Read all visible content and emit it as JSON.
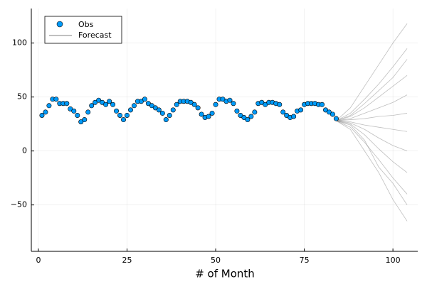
{
  "chart_data": {
    "type": "scatter-fan",
    "xlabel": "# of Month",
    "xlim": [
      -2,
      107
    ],
    "ylim": [
      -93,
      132
    ],
    "xticks": [
      0,
      25,
      50,
      75,
      100
    ],
    "yticks": [
      {
        "value": -50,
        "label": "−50"
      },
      0,
      50,
      100
    ],
    "grid": true,
    "legend": "top-left",
    "series": [
      {
        "name": "Obs",
        "color": "#009af9",
        "x": [
          1,
          2,
          3,
          4,
          5,
          6,
          7,
          8,
          9,
          10,
          11,
          12,
          13,
          14,
          15,
          16,
          17,
          18,
          19,
          20,
          21,
          22,
          23,
          24,
          25,
          26,
          27,
          28,
          29,
          30,
          31,
          32,
          33,
          34,
          35,
          36,
          37,
          38,
          39,
          40,
          41,
          42,
          43,
          44,
          45,
          46,
          47,
          48,
          49,
          50,
          51,
          52,
          53,
          54,
          55,
          56,
          57,
          58,
          59,
          60,
          61,
          62,
          63,
          64,
          65,
          66,
          67,
          68,
          69,
          70,
          71,
          72,
          73,
          74,
          75,
          76,
          77,
          78,
          79,
          80,
          81,
          82,
          83,
          84
        ],
        "values": [
          33,
          36,
          42,
          48,
          48,
          44,
          44,
          44,
          39,
          37,
          33,
          27,
          29,
          36,
          42,
          45,
          47,
          45,
          43,
          46,
          43,
          37,
          33,
          29,
          33,
          38,
          42,
          46,
          46,
          48,
          44,
          42,
          40,
          38,
          35,
          29,
          33,
          38,
          43,
          46,
          46,
          46,
          45,
          43,
          40,
          34,
          31,
          32,
          35,
          43,
          48,
          48,
          46,
          47,
          44,
          37,
          33,
          31,
          29,
          32,
          36,
          44,
          45,
          43,
          45,
          45,
          44,
          43,
          36,
          33,
          31,
          32,
          37,
          38,
          43,
          44,
          44,
          44,
          43,
          43,
          38,
          36,
          34,
          30
        ]
      },
      {
        "name": "Forecast",
        "color": "#808080",
        "x": [
          84,
          88,
          92,
          96,
          100,
          104
        ],
        "paths": [
          [
            28,
            40,
            60,
            80,
            100,
            118
          ],
          [
            28,
            35,
            48,
            62,
            78,
            95
          ],
          [
            28,
            33,
            44,
            56,
            68,
            85
          ],
          [
            28,
            32,
            40,
            50,
            60,
            70
          ],
          [
            28,
            30,
            35,
            40,
            45,
            52
          ],
          [
            28,
            29,
            30,
            32,
            33,
            35
          ],
          [
            28,
            27,
            24,
            22,
            20,
            18
          ],
          [
            28,
            26,
            20,
            12,
            5,
            0
          ],
          [
            28,
            25,
            15,
            2,
            -10,
            -20
          ],
          [
            28,
            24,
            10,
            -15,
            -30,
            -50
          ],
          [
            28,
            22,
            8,
            -8,
            -25,
            -40
          ],
          [
            28,
            20,
            0,
            -20,
            -45,
            -65
          ]
        ]
      }
    ]
  }
}
